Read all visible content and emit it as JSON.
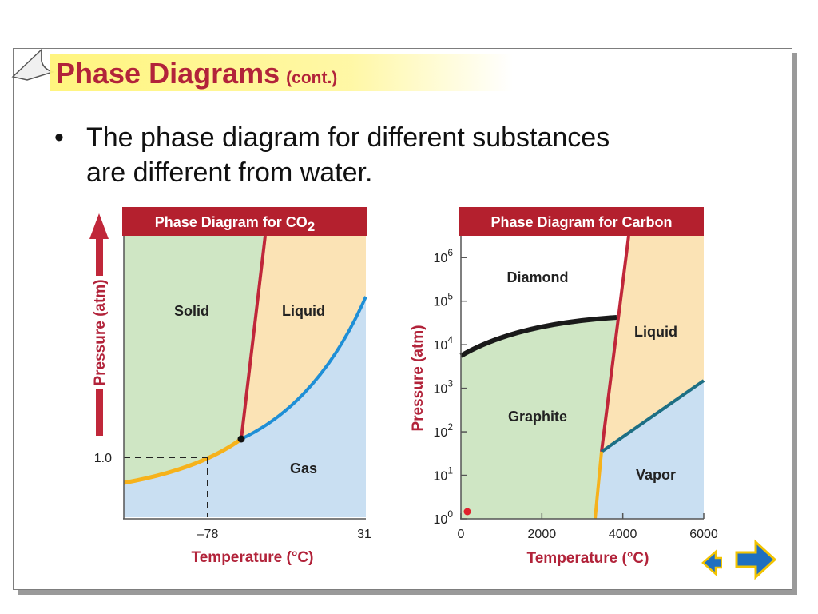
{
  "slide": {
    "title": "Phase Diagrams",
    "title_suffix": "(cont.)",
    "bullet_symbol": "•",
    "bullets": [
      "The phase diagram for different substances are different from water."
    ]
  },
  "colors": {
    "title_red": "#b2233a",
    "header_red": "#b4202e",
    "solid_green": "#cfe6c4",
    "liquid_yellow": "#fbe3b5",
    "gas_blue": "#c9dff2",
    "line_red": "#c0273a",
    "curve_blue": "#1f8fd6",
    "curve_orange": "#f6b21b",
    "diamond_line": "#1a1a1a",
    "vapor_line": "#1d6f84",
    "highlight_yellow": "#fff478",
    "nav_blue": "#1f6fc0",
    "nav_outline": "#f2c300"
  },
  "chart_data": [
    {
      "type": "diagram",
      "title": "Phase Diagram for CO",
      "title_subscript": "2",
      "xlabel": "Temperature (°C)",
      "ylabel": "Pressure (atm)",
      "x_ticks": [
        "–78",
        "31"
      ],
      "y_ticks": [
        "1.0"
      ],
      "regions": [
        "Solid",
        "Liquid",
        "Gas"
      ],
      "notable_points": [
        {
          "x": -78,
          "y": 1.0,
          "note": "dashed reference lines"
        }
      ]
    },
    {
      "type": "diagram",
      "title": "Phase Diagram for Carbon",
      "xlabel": "Temperature (°C)",
      "ylabel": "Pressure (atm)",
      "x_ticks": [
        "0",
        "2000",
        "4000",
        "6000"
      ],
      "y_tick_base": "10",
      "y_tick_exponents": [
        "0",
        "1",
        "2",
        "3",
        "4",
        "5",
        "6"
      ],
      "y_scale": "log",
      "xlim": [
        0,
        6000
      ],
      "ylim_exponent": [
        0,
        6.5
      ],
      "regions": [
        "Diamond",
        "Liquid",
        "Graphite",
        "Vapor"
      ]
    }
  ],
  "navigation": {
    "next_icon": "right-arrow-icon",
    "prev_icon": "left-arrow-icon"
  }
}
